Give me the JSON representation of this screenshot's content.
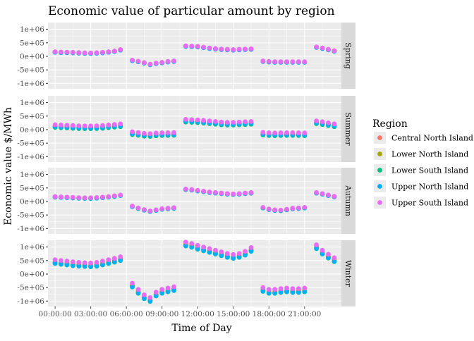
{
  "chart_data": {
    "type": "scatter",
    "title": "Economic value of particular amount by region",
    "xlabel": "Time of Day",
    "ylabel": "Economic value $/MWh",
    "x_ticks": [
      "00:00:00",
      "03:00:00",
      "06:00:00",
      "09:00:00",
      "12:00:00",
      "15:00:00",
      "18:00:00",
      "21:00:00"
    ],
    "y_ticks": [
      "-1e+06",
      "-5e+05",
      "0e+00",
      "5e+05",
      "1e+06"
    ],
    "ylim": [
      -1200000,
      1250000
    ],
    "xlim_hours": [
      -0.6,
      24.1
    ],
    "grid": true,
    "legend": {
      "title": "Region",
      "placement": "right",
      "entries": [
        "Central North Island",
        "Lower North Island",
        "Lower South Island",
        "Upper North Island",
        "Upper South Island"
      ]
    },
    "colors": {
      "Central North Island": "#F8766D",
      "Lower North Island": "#A3A500",
      "Lower South Island": "#00BF7D",
      "Upper North Island": "#00B0F6",
      "Upper South Island": "#E76BF3",
      "panel_bg": "#EBEBEB",
      "strip_bg": "#D9D9D9",
      "grid": "#FFFFFF"
    },
    "x_hours": [
      0,
      0.5,
      1,
      1.5,
      2,
      2.5,
      3,
      3.5,
      4,
      4.5,
      5,
      5.5,
      6.5,
      7,
      7.5,
      8,
      8.5,
      9,
      9.5,
      10,
      11,
      11.5,
      12,
      12.5,
      13,
      13.5,
      14,
      14.5,
      15,
      15.5,
      16,
      16.5,
      17.5,
      18,
      18.5,
      19,
      19.5,
      20,
      20.5,
      21,
      22,
      22.5,
      23,
      23.5
    ],
    "panels": [
      {
        "name": "Spring",
        "base": [
          160000,
          150000,
          145000,
          140000,
          130000,
          120000,
          115000,
          125000,
          140000,
          160000,
          190000,
          240000,
          -150000,
          -190000,
          -240000,
          -300000,
          -260000,
          -230000,
          -200000,
          -180000,
          380000,
          370000,
          360000,
          330000,
          300000,
          280000,
          260000,
          250000,
          240000,
          250000,
          260000,
          270000,
          -180000,
          -200000,
          -210000,
          -210000,
          -210000,
          -210000,
          -210000,
          -210000,
          340000,
          300000,
          250000,
          200000
        ],
        "offsets": [
          0,
          3000,
          -5000,
          -12000,
          8000
        ]
      },
      {
        "name": "Summer",
        "base": [
          140000,
          130000,
          120000,
          110000,
          100000,
          95000,
          95000,
          100000,
          110000,
          130000,
          150000,
          170000,
          -120000,
          -150000,
          -180000,
          -190000,
          -170000,
          -160000,
          -155000,
          -150000,
          340000,
          330000,
          320000,
          300000,
          280000,
          260000,
          240000,
          230000,
          230000,
          240000,
          250000,
          260000,
          -140000,
          -160000,
          -165000,
          -160000,
          -155000,
          -155000,
          -160000,
          -165000,
          280000,
          250000,
          210000,
          170000
        ],
        "offsets": [
          -10000,
          -20000,
          -60000,
          -30000,
          40000
        ]
      },
      {
        "name": "Autumn",
        "base": [
          170000,
          160000,
          150000,
          140000,
          130000,
          125000,
          125000,
          135000,
          150000,
          170000,
          200000,
          230000,
          -180000,
          -250000,
          -310000,
          -360000,
          -320000,
          -280000,
          -260000,
          -240000,
          450000,
          430000,
          400000,
          370000,
          340000,
          320000,
          300000,
          280000,
          270000,
          280000,
          300000,
          320000,
          -230000,
          -290000,
          -320000,
          -330000,
          -300000,
          -260000,
          -250000,
          -230000,
          320000,
          280000,
          230000,
          180000
        ],
        "offsets": [
          0,
          -5000,
          -10000,
          -8000,
          10000
        ]
      },
      {
        "name": "Winter",
        "base": [
          450000,
          420000,
          400000,
          370000,
          350000,
          340000,
          330000,
          350000,
          400000,
          450000,
          500000,
          560000,
          -420000,
          -650000,
          -850000,
          -950000,
          -750000,
          -650000,
          -600000,
          -550000,
          1100000,
          1050000,
          980000,
          920000,
          860000,
          800000,
          740000,
          680000,
          640000,
          680000,
          760000,
          900000,
          -580000,
          -650000,
          -650000,
          -620000,
          -600000,
          -620000,
          -620000,
          -600000,
          1000000,
          800000,
          650000,
          520000
        ],
        "offsets": [
          0,
          -20000,
          -60000,
          -50000,
          80000
        ]
      }
    ]
  }
}
